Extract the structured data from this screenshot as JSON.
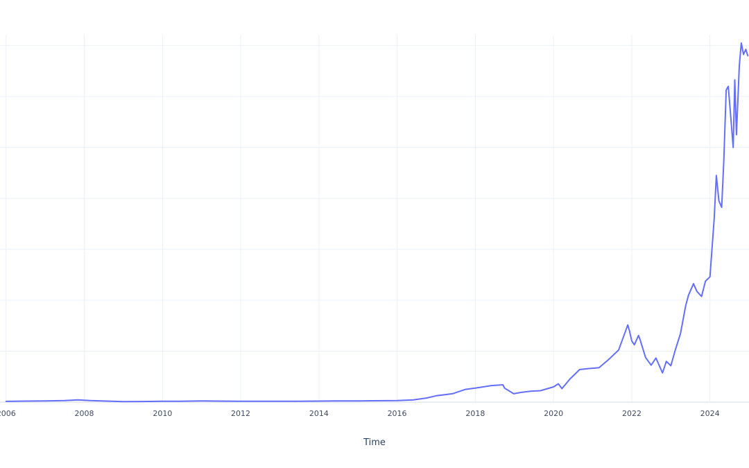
{
  "chart_data": {
    "type": "line",
    "title": "",
    "xlabel": "Time",
    "ylabel": "",
    "x_range": [
      "2005-11-05",
      "2024-12-31"
    ],
    "y_range": [
      0,
      147
    ],
    "grid": true,
    "xticks": [
      "2006-01-01",
      "2008-01-01",
      "2010-01-01",
      "2012-01-01",
      "2014-01-01",
      "2016-01-01",
      "2018-01-01",
      "2020-01-01",
      "2022-01-01",
      "2024-01-01"
    ],
    "xtick_labels": [
      "2006",
      "2008",
      "2010",
      "2012",
      "2014",
      "2016",
      "2018",
      "2020",
      "2022",
      "2024"
    ],
    "series": [
      {
        "color": "#636efa",
        "x": [
          "2006-01-01",
          "2006-07-01",
          "2007-01-01",
          "2007-07-01",
          "2007-11-01",
          "2008-03-01",
          "2008-08-01",
          "2009-01-01",
          "2009-06-01",
          "2010-01-01",
          "2010-06-01",
          "2011-01-01",
          "2011-06-01",
          "2012-01-01",
          "2012-06-01",
          "2013-01-01",
          "2013-06-01",
          "2014-01-01",
          "2014-06-01",
          "2015-01-01",
          "2015-06-01",
          "2016-01-01",
          "2016-06-01",
          "2016-10-01",
          "2017-01-01",
          "2017-06-01",
          "2017-10-01",
          "2018-01-01",
          "2018-06-01",
          "2018-09-15",
          "2018-10-01",
          "2018-12-25",
          "2019-03-01",
          "2019-06-01",
          "2019-09-01",
          "2020-01-01",
          "2020-02-15",
          "2020-03-20",
          "2020-06-01",
          "2020-09-01",
          "2020-12-01",
          "2021-03-01",
          "2021-06-01",
          "2021-09-01",
          "2021-11-25",
          "2021-12-10",
          "2022-01-01",
          "2022-01-25",
          "2022-03-05",
          "2022-03-20",
          "2022-05-10",
          "2022-07-01",
          "2022-08-15",
          "2022-10-15",
          "2022-11-20",
          "2023-01-01",
          "2023-02-15",
          "2023-04-01",
          "2023-05-20",
          "2023-06-15",
          "2023-08-01",
          "2023-09-01",
          "2023-10-15",
          "2023-11-20",
          "2024-01-01",
          "2024-02-10",
          "2024-03-01",
          "2024-03-25",
          "2024-04-20",
          "2024-05-10",
          "2024-06-01",
          "2024-06-20",
          "2024-07-10",
          "2024-08-05",
          "2024-08-20",
          "2024-09-05",
          "2024-10-01",
          "2024-10-20",
          "2024-11-10",
          "2024-12-01",
          "2024-12-20"
        ],
        "values": [
          0.3,
          0.4,
          0.5,
          0.6,
          0.9,
          0.6,
          0.4,
          0.2,
          0.25,
          0.35,
          0.35,
          0.45,
          0.4,
          0.35,
          0.33,
          0.33,
          0.35,
          0.4,
          0.45,
          0.5,
          0.55,
          0.6,
          0.9,
          1.6,
          2.5,
          3.3,
          5.0,
          5.5,
          6.5,
          6.8,
          5.5,
          3.3,
          3.8,
          4.3,
          4.5,
          6.0,
          7.2,
          5.3,
          9.0,
          12.8,
          13.2,
          13.5,
          16.8,
          20.5,
          30.3,
          28.0,
          24.0,
          22.5,
          26.2,
          24.5,
          17.5,
          14.5,
          17.3,
          11.5,
          16.0,
          14.3,
          21.0,
          26.9,
          38.0,
          42.0,
          46.5,
          43.5,
          41.5,
          47.5,
          49.2,
          72.0,
          89.0,
          79.0,
          76.5,
          95.0,
          122.5,
          124.0,
          114.0,
          100.0,
          126.5,
          105.0,
          132.0,
          141.0,
          136.5,
          138.5,
          136.0
        ]
      }
    ]
  }
}
